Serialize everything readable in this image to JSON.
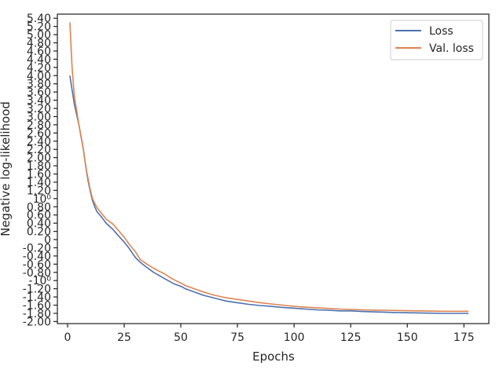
{
  "chart_data": {
    "type": "line",
    "xlabel": "Epochs",
    "ylabel": "Negative log-likelihood",
    "xlim": [
      -4.5,
      186
    ],
    "ylim": [
      -2.05,
      5.5
    ],
    "y_scale": "symlog",
    "grid": false,
    "legend_position": "top-right",
    "x_ticks": [
      0,
      25,
      50,
      75,
      100,
      125,
      150,
      175
    ],
    "x_tick_labels": [
      "0",
      "25",
      "50",
      "75",
      "100",
      "125",
      "150",
      "175"
    ],
    "y_ticks": [
      {
        "value": -2.0,
        "label": "-2.00"
      },
      {
        "value": -1.8,
        "label": "-1.80"
      },
      {
        "value": -1.6,
        "label": "-1.60"
      },
      {
        "value": -1.4,
        "label": "-1.40"
      },
      {
        "value": -1.2,
        "label": "-1.20"
      },
      {
        "value": -1.0,
        "label": "-10⁰"
      },
      {
        "value": -0.8,
        "label": "-0.80"
      },
      {
        "value": -0.6,
        "label": "-0.60"
      },
      {
        "value": -0.4,
        "label": "-0.40"
      },
      {
        "value": -0.2,
        "label": "-0.20"
      },
      {
        "value": 0,
        "label": "0"
      },
      {
        "value": 0.2,
        "label": "0.20"
      },
      {
        "value": 0.4,
        "label": "0.40"
      },
      {
        "value": 0.6,
        "label": "0.60"
      },
      {
        "value": 0.8,
        "label": "0.80"
      },
      {
        "value": 1.0,
        "label": "10⁰"
      },
      {
        "value": 1.2,
        "label": "1.20"
      },
      {
        "value": 1.4,
        "label": "1.40"
      },
      {
        "value": 1.6,
        "label": "1.60"
      },
      {
        "value": 1.8,
        "label": "1.80"
      },
      {
        "value": 2.0,
        "label": "2.00"
      },
      {
        "value": 2.2,
        "label": "2.20"
      },
      {
        "value": 2.4,
        "label": "2.40"
      },
      {
        "value": 2.6,
        "label": "2.60"
      },
      {
        "value": 2.8,
        "label": "2.80"
      },
      {
        "value": 3.0,
        "label": "3.00"
      },
      {
        "value": 3.2,
        "label": "3.20"
      },
      {
        "value": 3.4,
        "label": "3.40"
      },
      {
        "value": 3.6,
        "label": "3.60"
      },
      {
        "value": 3.8,
        "label": "3.80"
      },
      {
        "value": 4.0,
        "label": "4.00"
      },
      {
        "value": 4.2,
        "label": "4.20"
      },
      {
        "value": 4.4,
        "label": "4.40"
      },
      {
        "value": 4.6,
        "label": "4.60"
      },
      {
        "value": 4.8,
        "label": "4.80"
      },
      {
        "value": 5.0,
        "label": "5.00"
      },
      {
        "value": 5.2,
        "label": "5.20"
      },
      {
        "value": 5.4,
        "label": "5.40"
      }
    ],
    "series": [
      {
        "name": "Loss",
        "color": "#4c72b0",
        "x": [
          1,
          3,
          5,
          7,
          8,
          9,
          10,
          11,
          12,
          13,
          15,
          17,
          20,
          22,
          25,
          27,
          30,
          32,
          35,
          38,
          40,
          43,
          45,
          47,
          50,
          52,
          55,
          58,
          60,
          63,
          65,
          70,
          75,
          80,
          85,
          90,
          95,
          100,
          105,
          110,
          115,
          120,
          125,
          130,
          135,
          140,
          145,
          150,
          155,
          160,
          165,
          170,
          175,
          177
        ],
        "y": [
          4.0,
          3.3,
          2.8,
          2.2,
          1.8,
          1.45,
          1.18,
          0.95,
          0.8,
          0.68,
          0.55,
          0.4,
          0.25,
          0.12,
          -0.06,
          -0.2,
          -0.44,
          -0.55,
          -0.68,
          -0.8,
          -0.86,
          -0.96,
          -1.02,
          -1.08,
          -1.14,
          -1.2,
          -1.26,
          -1.32,
          -1.36,
          -1.4,
          -1.43,
          -1.5,
          -1.54,
          -1.58,
          -1.61,
          -1.63,
          -1.655,
          -1.675,
          -1.695,
          -1.715,
          -1.725,
          -1.74,
          -1.74,
          -1.755,
          -1.765,
          -1.77,
          -1.78,
          -1.785,
          -1.79,
          -1.795,
          -1.8,
          -1.8,
          -1.8,
          -1.8
        ]
      },
      {
        "name": "Val. loss",
        "color": "#dd8452",
        "x": [
          1,
          2,
          3,
          5,
          7,
          8,
          9,
          10,
          11,
          12,
          13,
          15,
          17,
          20,
          22,
          25,
          27,
          30,
          32,
          35,
          38,
          40,
          43,
          45,
          47,
          50,
          52,
          55,
          58,
          60,
          63,
          65,
          70,
          75,
          80,
          85,
          90,
          95,
          100,
          105,
          110,
          115,
          120,
          125,
          130,
          135,
          140,
          145,
          150,
          155,
          160,
          165,
          170,
          175,
          177
        ],
        "y": [
          5.3,
          4.2,
          3.5,
          2.8,
          2.2,
          1.8,
          1.5,
          1.22,
          1.0,
          0.88,
          0.78,
          0.64,
          0.5,
          0.38,
          0.25,
          0.06,
          -0.1,
          -0.3,
          -0.48,
          -0.6,
          -0.7,
          -0.76,
          -0.84,
          -0.92,
          -0.98,
          -1.06,
          -1.12,
          -1.18,
          -1.24,
          -1.28,
          -1.33,
          -1.36,
          -1.42,
          -1.46,
          -1.5,
          -1.54,
          -1.57,
          -1.6,
          -1.63,
          -1.65,
          -1.665,
          -1.68,
          -1.695,
          -1.705,
          -1.715,
          -1.72,
          -1.725,
          -1.73,
          -1.735,
          -1.74,
          -1.745,
          -1.75,
          -1.75,
          -1.75,
          -1.75
        ]
      }
    ]
  }
}
